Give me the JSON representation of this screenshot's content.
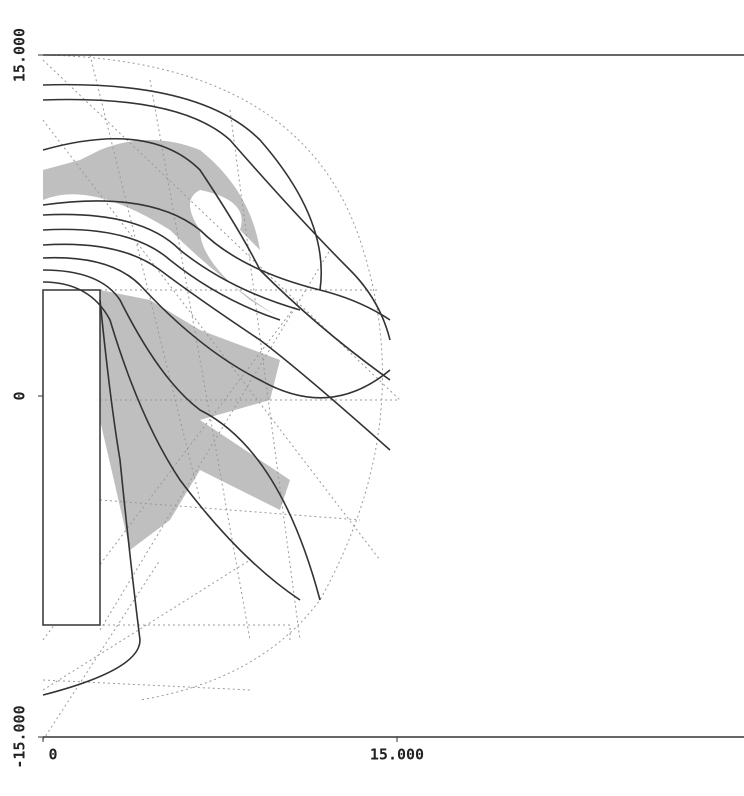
{
  "chart_data": {
    "type": "contour",
    "xlim": [
      0,
      30
    ],
    "ylim": [
      -15,
      15
    ],
    "xticks": [
      0,
      {
        "value": 15,
        "label": "15.000"
      }
    ],
    "yticks": [
      {
        "value": -15,
        "label": "-15.000"
      },
      0,
      {
        "value": 15,
        "label": "15.000"
      }
    ]
  }
}
